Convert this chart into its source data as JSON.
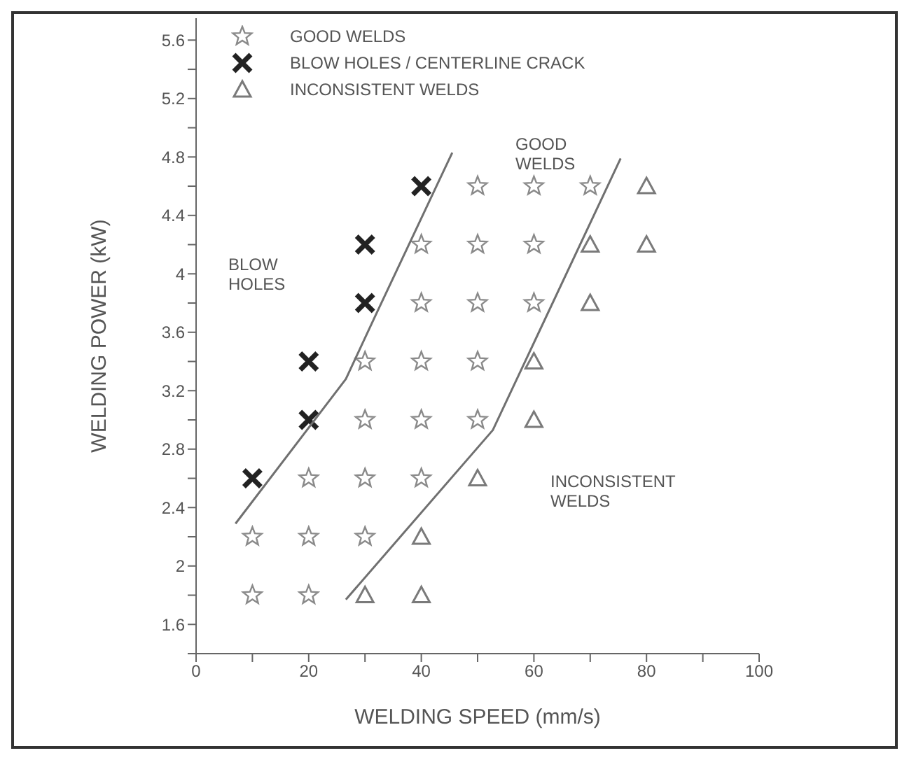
{
  "chart_data": {
    "type": "scatter",
    "xlabel": "WELDING SPEED (mm/s)",
    "ylabel": "WELDING POWER (kW)",
    "xlim": [
      0,
      100
    ],
    "xticks": [
      0,
      {
        "value": 10,
        "label": null
      },
      20,
      {
        "value": 30,
        "label": null
      },
      40,
      {
        "value": 50,
        "label": null
      },
      60,
      {
        "value": 70,
        "label": null
      },
      80,
      {
        "value": 90,
        "label": null
      },
      100
    ],
    "ylim": [
      1.4,
      5.75
    ],
    "yticks": [
      {
        "value": 1.4,
        "label": null
      },
      1.6,
      {
        "value": 1.8,
        "label": null
      },
      2,
      {
        "value": 2.2,
        "label": null
      },
      2.4,
      {
        "value": 2.6,
        "label": null
      },
      2.8,
      {
        "value": 3,
        "label": null
      },
      3.2,
      {
        "value": 3.4,
        "label": null
      },
      3.6,
      {
        "value": 3.8,
        "label": null
      },
      4,
      {
        "value": 4.2,
        "label": null
      },
      4.4,
      {
        "value": 4.6,
        "label": null
      },
      4.8,
      {
        "value": 5,
        "label": null
      },
      5.2,
      {
        "value": 5.4,
        "label": null
      },
      5.6
    ],
    "grid": false,
    "legend": "top left",
    "series": [
      {
        "name": "GOOD WELDS",
        "marker": "star",
        "color": "#8a8a8a",
        "x": [
          10,
          20,
          10,
          20,
          30,
          20,
          30,
          40,
          30,
          40,
          50,
          30,
          40,
          50,
          40,
          50,
          60,
          40,
          50,
          60,
          50,
          60,
          70
        ],
        "values": [
          1.8,
          1.8,
          2.2,
          2.2,
          2.2,
          2.6,
          2.6,
          2.6,
          3.0,
          3.0,
          3.0,
          3.4,
          3.4,
          3.4,
          3.8,
          3.8,
          3.8,
          4.2,
          4.2,
          4.2,
          4.6,
          4.6,
          4.6
        ]
      },
      {
        "name": "BLOW HOLES / CENTERLINE CRACK",
        "marker": "cross",
        "color": "#222222",
        "x": [
          10,
          20,
          20,
          30,
          30,
          40
        ],
        "values": [
          2.6,
          3.0,
          3.4,
          3.8,
          4.2,
          4.6
        ]
      },
      {
        "name": "INCONSISTENT WELDS",
        "marker": "triangle",
        "color": "#7a7a7a",
        "x": [
          30,
          40,
          40,
          50,
          60,
          60,
          70,
          70,
          80,
          80
        ],
        "values": [
          1.8,
          1.8,
          2.2,
          2.6,
          3.0,
          3.4,
          3.8,
          4.2,
          4.2,
          4.6
        ]
      },
      {
        "type": "line",
        "marker": "none",
        "color": "#707070",
        "x": [
          7,
          26.6,
          31.8,
          45.5
        ],
        "values": [
          2.29,
          3.28,
          3.71,
          4.83
        ]
      },
      {
        "type": "line",
        "marker": "none",
        "color": "#707070",
        "x": [
          26.6,
          52.7,
          75.4
        ],
        "values": [
          1.77,
          2.93,
          4.79
        ]
      }
    ],
    "annotations": [
      "BLOW HOLES",
      "GOOD WELDS",
      "INCONSISTENT WELDS"
    ]
  }
}
